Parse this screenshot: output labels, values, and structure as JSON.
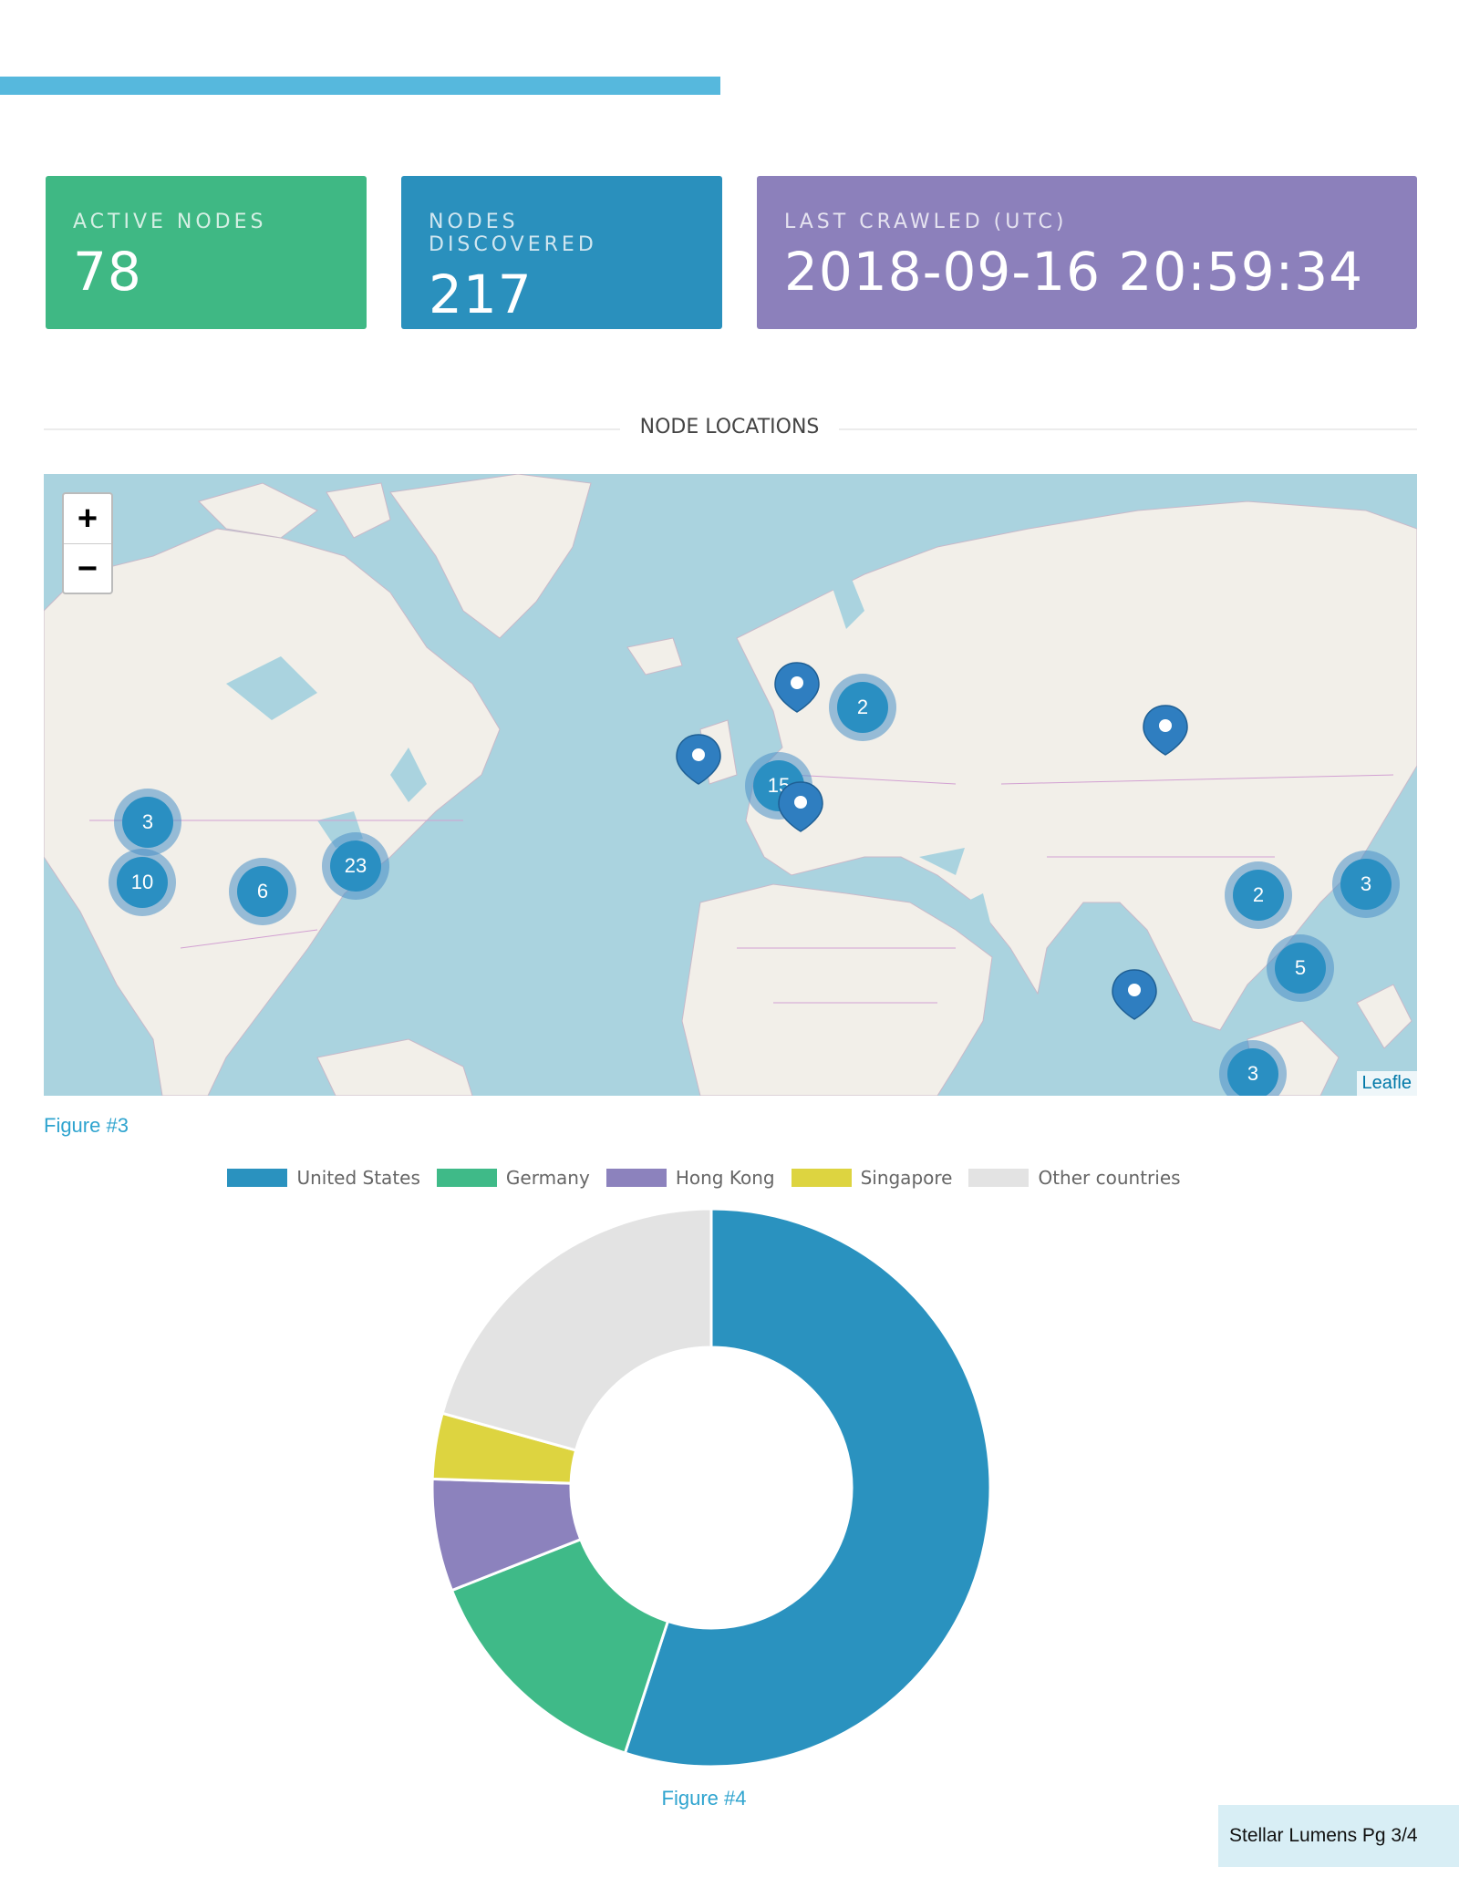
{
  "stats": {
    "active_nodes": {
      "label": "ACTIVE NODES",
      "value": "78"
    },
    "nodes_discovered": {
      "label": "NODES DISCOVERED",
      "value": "217"
    },
    "last_crawled": {
      "label": "LAST CRAWLED (UTC)",
      "value": "2018-09-16 20:59:34"
    }
  },
  "node_locations_title": "NODE LOCATIONS",
  "map": {
    "zoom_in": "+",
    "zoom_out": "−",
    "attribution": "Leafle",
    "clusters": [
      "3",
      "10",
      "6",
      "23",
      "15",
      "2",
      "2",
      "3",
      "5",
      "3"
    ]
  },
  "figure3_caption": "Figure #3",
  "figure4_caption": "Figure #4",
  "footer": "Stellar Lumens Pg 3/4",
  "chart_data": {
    "type": "pie",
    "categories": [
      "United States",
      "Germany",
      "Hong Kong",
      "Singapore",
      "Other countries"
    ],
    "values": [
      55,
      14,
      6.5,
      3.8,
      20.7
    ],
    "colors": [
      "#2a92bf",
      "#3fba88",
      "#8c82bd",
      "#ddd440",
      "#e3e3e3"
    ],
    "legend": "top"
  }
}
